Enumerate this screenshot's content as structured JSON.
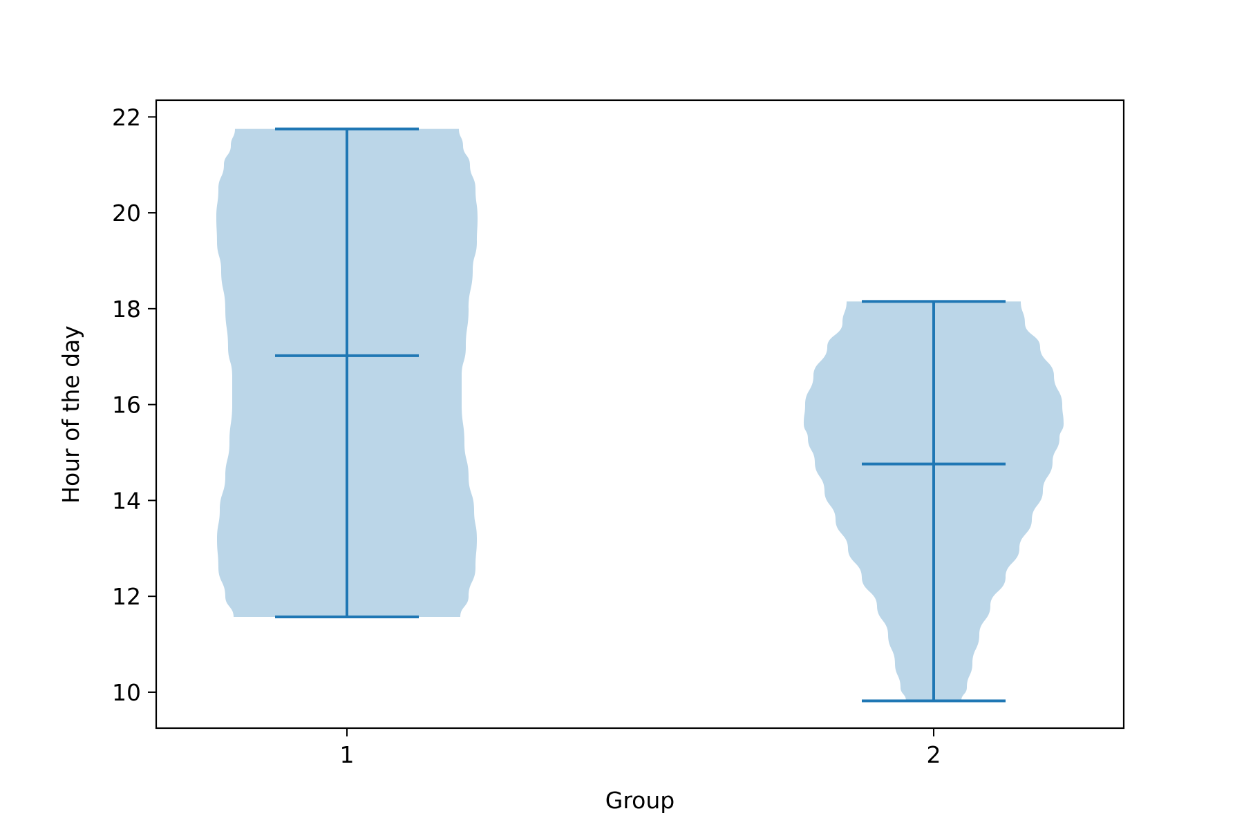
{
  "chart_data": {
    "type": "violin",
    "title": "",
    "xlabel": "Group",
    "ylabel": "Hour of the day",
    "x_ticks": [
      "1",
      "2"
    ],
    "y_ticks": [
      "10",
      "12",
      "14",
      "16",
      "18",
      "20",
      "22"
    ],
    "ylim": [
      9.25,
      22.35
    ],
    "grid": false,
    "legend": "none",
    "colors": {
      "body": "#bbd6e8",
      "line": "#1f77b4",
      "axes": "#000000"
    },
    "series": [
      {
        "category": "1",
        "min": 11.57,
        "median": 17.02,
        "max": 21.75,
        "density_profile": [
          {
            "y": 11.57,
            "w": 0.82
          },
          {
            "y": 12.0,
            "w": 0.88
          },
          {
            "y": 12.6,
            "w": 0.93
          },
          {
            "y": 13.2,
            "w": 0.94
          },
          {
            "y": 13.8,
            "w": 0.92
          },
          {
            "y": 14.5,
            "w": 0.88
          },
          {
            "y": 15.2,
            "w": 0.85
          },
          {
            "y": 16.0,
            "w": 0.83
          },
          {
            "y": 16.6,
            "w": 0.83
          },
          {
            "y": 17.2,
            "w": 0.86
          },
          {
            "y": 18.0,
            "w": 0.88
          },
          {
            "y": 18.8,
            "w": 0.91
          },
          {
            "y": 19.4,
            "w": 0.94
          },
          {
            "y": 19.9,
            "w": 0.945
          },
          {
            "y": 20.5,
            "w": 0.93
          },
          {
            "y": 21.0,
            "w": 0.89
          },
          {
            "y": 21.4,
            "w": 0.84
          },
          {
            "y": 21.75,
            "w": 0.81
          }
        ]
      },
      {
        "category": "2",
        "min": 9.82,
        "median": 14.76,
        "max": 18.15,
        "density_profile": [
          {
            "y": 9.82,
            "w": 0.2
          },
          {
            "y": 10.1,
            "w": 0.24
          },
          {
            "y": 10.6,
            "w": 0.28
          },
          {
            "y": 11.2,
            "w": 0.33
          },
          {
            "y": 11.8,
            "w": 0.41
          },
          {
            "y": 12.4,
            "w": 0.52
          },
          {
            "y": 13.0,
            "w": 0.62
          },
          {
            "y": 13.6,
            "w": 0.71
          },
          {
            "y": 14.2,
            "w": 0.79
          },
          {
            "y": 14.8,
            "w": 0.86
          },
          {
            "y": 15.3,
            "w": 0.91
          },
          {
            "y": 15.6,
            "w": 0.94
          },
          {
            "y": 16.0,
            "w": 0.93
          },
          {
            "y": 16.6,
            "w": 0.87
          },
          {
            "y": 17.2,
            "w": 0.77
          },
          {
            "y": 17.7,
            "w": 0.66
          },
          {
            "y": 18.15,
            "w": 0.63
          }
        ]
      }
    ]
  }
}
